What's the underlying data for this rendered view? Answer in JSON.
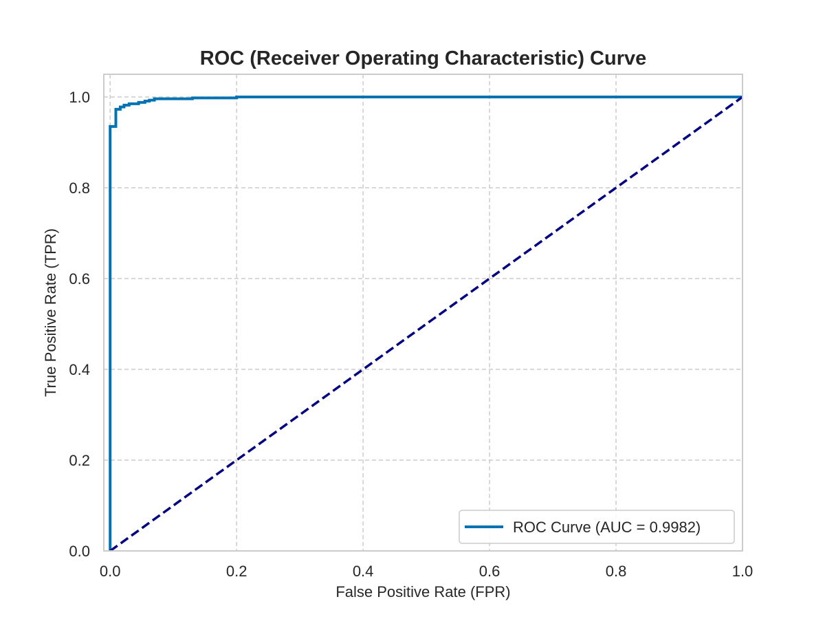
{
  "chart_data": {
    "type": "line",
    "title": "ROC (Receiver Operating Characteristic) Curve",
    "xlabel": "False Positive Rate (FPR)",
    "ylabel": "True Positive Rate (TPR)",
    "xlim": [
      -0.01,
      1.0
    ],
    "ylim": [
      0.0,
      1.05
    ],
    "xticks": [
      "0.0",
      "0.2",
      "0.4",
      "0.6",
      "0.8",
      "1.0"
    ],
    "yticks": [
      "0.0",
      "0.2",
      "0.4",
      "0.6",
      "0.8",
      "1.0"
    ],
    "grid": true,
    "grid_style": "dashed",
    "legend_position": "lower-right",
    "series": [
      {
        "name": "ROC Curve (AUC = 0.9982)",
        "color": "#0173b2",
        "style": "solid",
        "x": [
          0.0,
          0.0,
          0.0,
          0.009,
          0.009,
          0.016,
          0.016,
          0.022,
          0.022,
          0.03,
          0.03,
          0.045,
          0.045,
          0.055,
          0.055,
          0.062,
          0.062,
          0.07,
          0.07,
          0.13,
          0.13,
          0.2,
          0.2,
          1.0
        ],
        "y": [
          0.0,
          0.935,
          0.935,
          0.935,
          0.973,
          0.973,
          0.978,
          0.978,
          0.982,
          0.982,
          0.985,
          0.985,
          0.988,
          0.988,
          0.991,
          0.991,
          0.993,
          0.993,
          0.996,
          0.996,
          0.998,
          0.998,
          1.0,
          1.0
        ]
      },
      {
        "color": "#000080",
        "style": "dashed",
        "x": [
          0.0,
          1.0
        ],
        "y": [
          0.0,
          1.0
        ]
      }
    ]
  },
  "colors": {
    "frame": "#cccccc",
    "grid": "#cccccc",
    "text": "#262626"
  }
}
